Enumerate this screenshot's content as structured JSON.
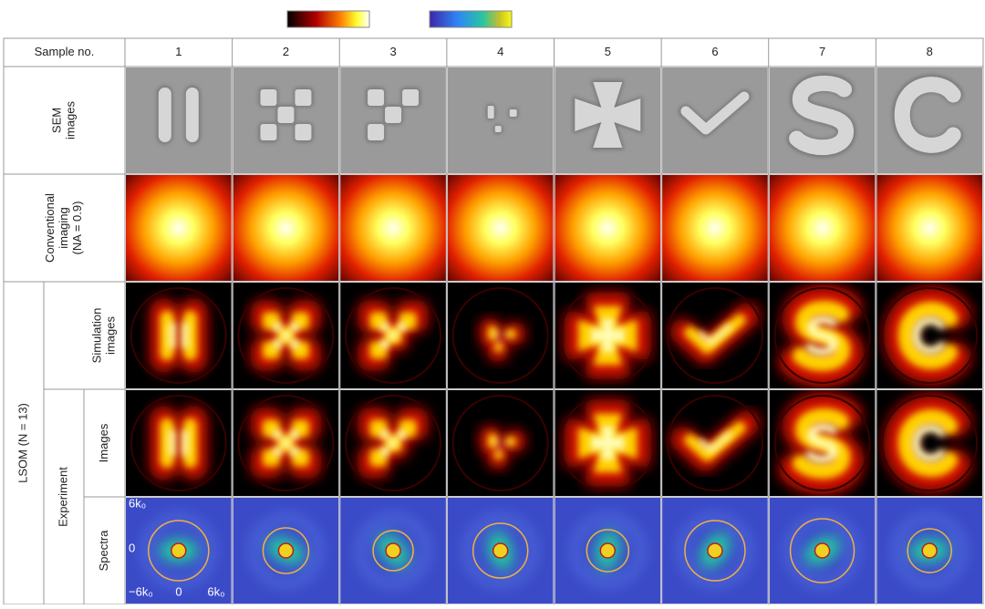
{
  "header": {
    "corner": "Sample no.",
    "samples": [
      "1",
      "2",
      "3",
      "4",
      "5",
      "6",
      "7",
      "8"
    ]
  },
  "row_labels": {
    "sem": [
      "SEM",
      "images"
    ],
    "conventional": [
      "Conventional",
      "imaging",
      "(NA = 0.9)"
    ],
    "lsom": "LSOM (N = 13)",
    "simulation": [
      "Simulation",
      "images"
    ],
    "experiment": "Experiment",
    "images": "Images",
    "spectra": "Spectra"
  },
  "spectra_axis": {
    "y_top": "6k₀",
    "y_mid": "0",
    "y_bottom": "−6k₀",
    "x_mid": "0",
    "x_right": "6k₀"
  }
}
